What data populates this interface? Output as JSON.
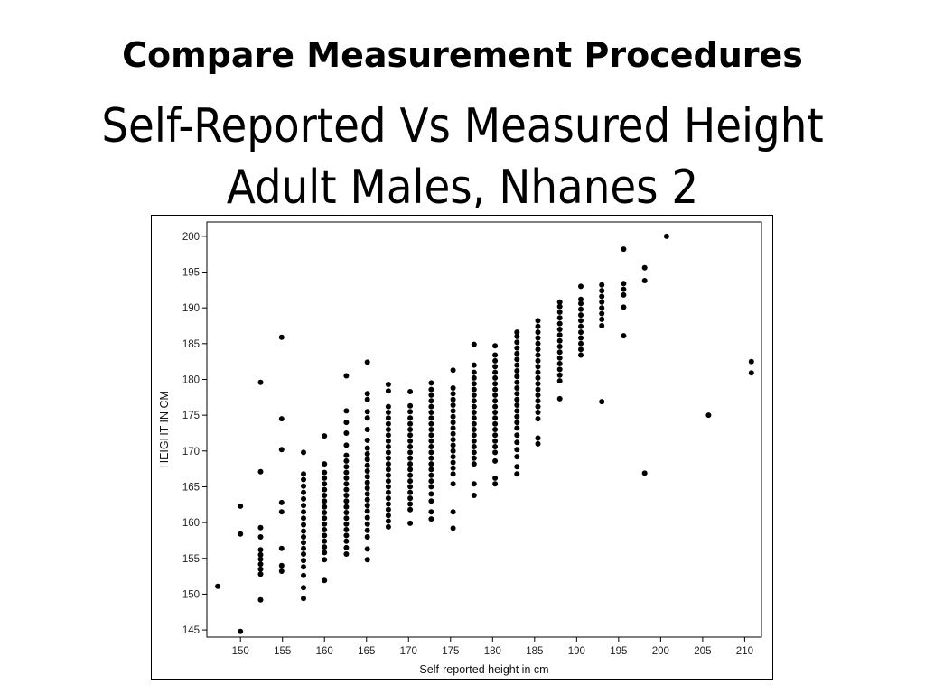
{
  "slide": {
    "title": "Compare Measurement Procedures",
    "subtitle_line1": "Self-Reported Vs Measured Height",
    "subtitle_line2": "Adult Males, Nhanes 2"
  },
  "chart_data": {
    "type": "scatter",
    "xlabel": "Self-reported height in cm",
    "ylabel": "HEIGHT IN CM",
    "xlim": [
      146,
      212
    ],
    "ylim": [
      144,
      202
    ],
    "xticks": [
      150,
      155,
      160,
      165,
      170,
      175,
      180,
      185,
      190,
      195,
      200,
      205,
      210
    ],
    "yticks": [
      145,
      150,
      155,
      160,
      165,
      170,
      175,
      180,
      185,
      190,
      195,
      200
    ],
    "grid": false,
    "marker_color": "#000000",
    "points": [
      [
        147.3,
        151.1
      ],
      [
        150.0,
        144.8
      ],
      [
        150.0,
        158.4
      ],
      [
        150.0,
        162.3
      ],
      [
        152.4,
        149.2
      ],
      [
        152.4,
        152.8
      ],
      [
        152.4,
        153.5
      ],
      [
        152.4,
        154.2
      ],
      [
        152.4,
        154.9
      ],
      [
        152.4,
        155.5
      ],
      [
        152.4,
        156.2
      ],
      [
        152.4,
        158.0
      ],
      [
        152.4,
        159.3
      ],
      [
        152.4,
        167.1
      ],
      [
        152.4,
        179.6
      ],
      [
        154.9,
        153.2
      ],
      [
        154.9,
        154.0
      ],
      [
        154.9,
        156.4
      ],
      [
        154.9,
        161.5
      ],
      [
        154.9,
        162.8
      ],
      [
        154.9,
        170.2
      ],
      [
        154.9,
        174.5
      ],
      [
        154.9,
        185.9
      ],
      [
        157.5,
        149.4
      ],
      [
        157.5,
        150.9
      ],
      [
        157.5,
        152.6
      ],
      [
        157.5,
        153.8
      ],
      [
        157.5,
        154.7
      ],
      [
        157.5,
        155.6
      ],
      [
        157.5,
        156.4
      ],
      [
        157.5,
        157.2
      ],
      [
        157.5,
        158.0
      ],
      [
        157.5,
        158.8
      ],
      [
        157.5,
        159.7
      ],
      [
        157.5,
        160.6
      ],
      [
        157.5,
        161.5
      ],
      [
        157.5,
        162.4
      ],
      [
        157.5,
        163.3
      ],
      [
        157.5,
        164.2
      ],
      [
        157.5,
        165.1
      ],
      [
        157.5,
        166.0
      ],
      [
        157.5,
        166.8
      ],
      [
        157.5,
        169.8
      ],
      [
        160.0,
        151.9
      ],
      [
        160.0,
        154.8
      ],
      [
        160.0,
        155.8
      ],
      [
        160.0,
        156.6
      ],
      [
        160.0,
        157.4
      ],
      [
        160.0,
        158.2
      ],
      [
        160.0,
        159.0
      ],
      [
        160.0,
        159.8
      ],
      [
        160.0,
        160.6
      ],
      [
        160.0,
        161.4
      ],
      [
        160.0,
        162.2
      ],
      [
        160.0,
        163.0
      ],
      [
        160.0,
        163.8
      ],
      [
        160.0,
        164.6
      ],
      [
        160.0,
        165.4
      ],
      [
        160.0,
        166.2
      ],
      [
        160.0,
        167.0
      ],
      [
        160.0,
        168.2
      ],
      [
        160.0,
        172.1
      ],
      [
        162.6,
        155.6
      ],
      [
        162.6,
        156.5
      ],
      [
        162.6,
        157.4
      ],
      [
        162.6,
        158.2
      ],
      [
        162.6,
        159.0
      ],
      [
        162.6,
        159.8
      ],
      [
        162.6,
        160.6
      ],
      [
        162.6,
        161.4
      ],
      [
        162.6,
        162.2
      ],
      [
        162.6,
        163.0
      ],
      [
        162.6,
        163.8
      ],
      [
        162.6,
        164.6
      ],
      [
        162.6,
        165.4
      ],
      [
        162.6,
        166.2
      ],
      [
        162.6,
        167.0
      ],
      [
        162.6,
        167.8
      ],
      [
        162.6,
        168.6
      ],
      [
        162.6,
        169.4
      ],
      [
        162.6,
        170.8
      ],
      [
        162.6,
        172.5
      ],
      [
        162.6,
        174.0
      ],
      [
        162.6,
        175.6
      ],
      [
        162.6,
        180.5
      ],
      [
        165.1,
        154.8
      ],
      [
        165.1,
        156.3
      ],
      [
        165.1,
        158.0
      ],
      [
        165.1,
        158.9
      ],
      [
        165.1,
        159.8
      ],
      [
        165.1,
        160.7
      ],
      [
        165.1,
        161.6
      ],
      [
        165.1,
        162.4
      ],
      [
        165.1,
        163.2
      ],
      [
        165.1,
        164.0
      ],
      [
        165.1,
        164.8
      ],
      [
        165.1,
        165.6
      ],
      [
        165.1,
        166.4
      ],
      [
        165.1,
        167.2
      ],
      [
        165.1,
        168.0
      ],
      [
        165.1,
        168.8
      ],
      [
        165.1,
        169.6
      ],
      [
        165.1,
        170.4
      ],
      [
        165.1,
        171.5
      ],
      [
        165.1,
        173.0
      ],
      [
        165.1,
        174.6
      ],
      [
        165.1,
        175.5
      ],
      [
        165.1,
        177.2
      ],
      [
        165.1,
        178.0
      ],
      [
        165.1,
        182.4
      ],
      [
        167.6,
        159.4
      ],
      [
        167.6,
        160.2
      ],
      [
        167.6,
        161.0
      ],
      [
        167.6,
        161.8
      ],
      [
        167.6,
        162.6
      ],
      [
        167.6,
        163.4
      ],
      [
        167.6,
        164.2
      ],
      [
        167.6,
        165.0
      ],
      [
        167.6,
        165.8
      ],
      [
        167.6,
        166.6
      ],
      [
        167.6,
        167.4
      ],
      [
        167.6,
        168.2
      ],
      [
        167.6,
        169.0
      ],
      [
        167.6,
        169.8
      ],
      [
        167.6,
        170.6
      ],
      [
        167.6,
        171.4
      ],
      [
        167.6,
        172.2
      ],
      [
        167.6,
        173.0
      ],
      [
        167.6,
        173.8
      ],
      [
        167.6,
        174.6
      ],
      [
        167.6,
        175.4
      ],
      [
        167.6,
        176.2
      ],
      [
        167.6,
        178.4
      ],
      [
        167.6,
        179.3
      ],
      [
        170.2,
        159.9
      ],
      [
        170.2,
        161.8
      ],
      [
        170.2,
        162.6
      ],
      [
        170.2,
        163.4
      ],
      [
        170.2,
        164.2
      ],
      [
        170.2,
        165.0
      ],
      [
        170.2,
        165.8
      ],
      [
        170.2,
        166.6
      ],
      [
        170.2,
        167.4
      ],
      [
        170.2,
        168.2
      ],
      [
        170.2,
        169.0
      ],
      [
        170.2,
        169.8
      ],
      [
        170.2,
        170.6
      ],
      [
        170.2,
        171.4
      ],
      [
        170.2,
        172.2
      ],
      [
        170.2,
        173.0
      ],
      [
        170.2,
        173.8
      ],
      [
        170.2,
        174.6
      ],
      [
        170.2,
        175.5
      ],
      [
        170.2,
        176.3
      ],
      [
        170.2,
        178.3
      ],
      [
        172.7,
        160.5
      ],
      [
        172.7,
        161.5
      ],
      [
        172.7,
        163.0
      ],
      [
        172.7,
        164.0
      ],
      [
        172.7,
        165.0
      ],
      [
        172.7,
        165.8
      ],
      [
        172.7,
        166.6
      ],
      [
        172.7,
        167.4
      ],
      [
        172.7,
        168.2
      ],
      [
        172.7,
        169.0
      ],
      [
        172.7,
        169.8
      ],
      [
        172.7,
        170.6
      ],
      [
        172.7,
        171.4
      ],
      [
        172.7,
        172.2
      ],
      [
        172.7,
        173.0
      ],
      [
        172.7,
        173.8
      ],
      [
        172.7,
        174.6
      ],
      [
        172.7,
        175.4
      ],
      [
        172.7,
        176.2
      ],
      [
        172.7,
        177.0
      ],
      [
        172.7,
        177.8
      ],
      [
        172.7,
        178.6
      ],
      [
        172.7,
        179.5
      ],
      [
        175.3,
        159.2
      ],
      [
        175.3,
        161.5
      ],
      [
        175.3,
        165.4
      ],
      [
        175.3,
        166.8
      ],
      [
        175.3,
        167.6
      ],
      [
        175.3,
        168.4
      ],
      [
        175.3,
        169.2
      ],
      [
        175.3,
        170.0
      ],
      [
        175.3,
        170.8
      ],
      [
        175.3,
        171.6
      ],
      [
        175.3,
        172.4
      ],
      [
        175.3,
        173.2
      ],
      [
        175.3,
        174.0
      ],
      [
        175.3,
        174.8
      ],
      [
        175.3,
        175.6
      ],
      [
        175.3,
        176.4
      ],
      [
        175.3,
        177.2
      ],
      [
        175.3,
        178.0
      ],
      [
        175.3,
        178.8
      ],
      [
        175.3,
        181.3
      ],
      [
        177.8,
        163.8
      ],
      [
        177.8,
        165.4
      ],
      [
        177.8,
        168.2
      ],
      [
        177.8,
        169.0
      ],
      [
        177.8,
        169.8
      ],
      [
        177.8,
        170.6
      ],
      [
        177.8,
        171.4
      ],
      [
        177.8,
        172.2
      ],
      [
        177.8,
        173.0
      ],
      [
        177.8,
        173.8
      ],
      [
        177.8,
        174.6
      ],
      [
        177.8,
        175.4
      ],
      [
        177.8,
        176.2
      ],
      [
        177.8,
        177.0
      ],
      [
        177.8,
        177.8
      ],
      [
        177.8,
        178.6
      ],
      [
        177.8,
        179.4
      ],
      [
        177.8,
        180.2
      ],
      [
        177.8,
        181.0
      ],
      [
        177.8,
        182.0
      ],
      [
        177.8,
        184.9
      ],
      [
        180.3,
        165.4
      ],
      [
        180.3,
        166.2
      ],
      [
        180.3,
        168.6
      ],
      [
        180.3,
        169.8
      ],
      [
        180.3,
        170.6
      ],
      [
        180.3,
        171.4
      ],
      [
        180.3,
        172.2
      ],
      [
        180.3,
        173.0
      ],
      [
        180.3,
        173.8
      ],
      [
        180.3,
        174.6
      ],
      [
        180.3,
        175.4
      ],
      [
        180.3,
        176.2
      ],
      [
        180.3,
        177.0
      ],
      [
        180.3,
        177.8
      ],
      [
        180.3,
        178.6
      ],
      [
        180.3,
        179.4
      ],
      [
        180.3,
        180.2
      ],
      [
        180.3,
        181.0
      ],
      [
        180.3,
        181.8
      ],
      [
        180.3,
        182.6
      ],
      [
        180.3,
        183.4
      ],
      [
        180.3,
        184.7
      ],
      [
        182.9,
        166.8
      ],
      [
        182.9,
        167.8
      ],
      [
        182.9,
        169.2
      ],
      [
        182.9,
        170.2
      ],
      [
        182.9,
        171.2
      ],
      [
        182.9,
        172.2
      ],
      [
        182.9,
        173.2
      ],
      [
        182.9,
        174.0
      ],
      [
        182.9,
        174.8
      ],
      [
        182.9,
        175.6
      ],
      [
        182.9,
        176.4
      ],
      [
        182.9,
        177.2
      ],
      [
        182.9,
        178.0
      ],
      [
        182.9,
        178.8
      ],
      [
        182.9,
        179.6
      ],
      [
        182.9,
        180.4
      ],
      [
        182.9,
        181.2
      ],
      [
        182.9,
        182.0
      ],
      [
        182.9,
        182.8
      ],
      [
        182.9,
        183.6
      ],
      [
        182.9,
        184.4
      ],
      [
        182.9,
        185.2
      ],
      [
        182.9,
        186.0
      ],
      [
        182.9,
        186.6
      ],
      [
        185.4,
        171.0
      ],
      [
        185.4,
        171.8
      ],
      [
        185.4,
        174.5
      ],
      [
        185.4,
        175.4
      ],
      [
        185.4,
        176.2
      ],
      [
        185.4,
        177.0
      ],
      [
        185.4,
        177.8
      ],
      [
        185.4,
        178.6
      ],
      [
        185.4,
        179.4
      ],
      [
        185.4,
        180.2
      ],
      [
        185.4,
        181.0
      ],
      [
        185.4,
        181.8
      ],
      [
        185.4,
        182.6
      ],
      [
        185.4,
        183.4
      ],
      [
        185.4,
        184.2
      ],
      [
        185.4,
        185.0
      ],
      [
        185.4,
        185.8
      ],
      [
        185.4,
        186.6
      ],
      [
        185.4,
        187.4
      ],
      [
        185.4,
        188.2
      ],
      [
        188.0,
        177.3
      ],
      [
        188.0,
        179.8
      ],
      [
        188.0,
        180.6
      ],
      [
        188.0,
        181.4
      ],
      [
        188.0,
        182.2
      ],
      [
        188.0,
        183.0
      ],
      [
        188.0,
        183.8
      ],
      [
        188.0,
        184.6
      ],
      [
        188.0,
        185.4
      ],
      [
        188.0,
        186.2
      ],
      [
        188.0,
        187.0
      ],
      [
        188.0,
        187.8
      ],
      [
        188.0,
        188.6
      ],
      [
        188.0,
        189.4
      ],
      [
        188.0,
        190.2
      ],
      [
        188.0,
        190.8
      ],
      [
        190.5,
        183.4
      ],
      [
        190.5,
        184.2
      ],
      [
        190.5,
        185.0
      ],
      [
        190.5,
        185.8
      ],
      [
        190.5,
        186.6
      ],
      [
        190.5,
        187.4
      ],
      [
        190.5,
        188.2
      ],
      [
        190.5,
        189.0
      ],
      [
        190.5,
        189.8
      ],
      [
        190.5,
        190.6
      ],
      [
        190.5,
        191.2
      ],
      [
        190.5,
        193.0
      ],
      [
        193.0,
        176.9
      ],
      [
        193.0,
        187.5
      ],
      [
        193.0,
        188.4
      ],
      [
        193.0,
        189.2
      ],
      [
        193.0,
        190.0
      ],
      [
        193.0,
        190.8
      ],
      [
        193.0,
        191.6
      ],
      [
        193.0,
        192.4
      ],
      [
        193.0,
        193.2
      ],
      [
        195.6,
        186.1
      ],
      [
        195.6,
        190.1
      ],
      [
        195.6,
        191.8
      ],
      [
        195.6,
        192.6
      ],
      [
        195.6,
        193.4
      ],
      [
        195.6,
        198.2
      ],
      [
        198.1,
        166.9
      ],
      [
        198.1,
        193.8
      ],
      [
        198.1,
        195.6
      ],
      [
        200.7,
        200.0
      ],
      [
        205.7,
        175.0
      ],
      [
        210.8,
        180.9
      ],
      [
        210.8,
        182.5
      ]
    ]
  }
}
